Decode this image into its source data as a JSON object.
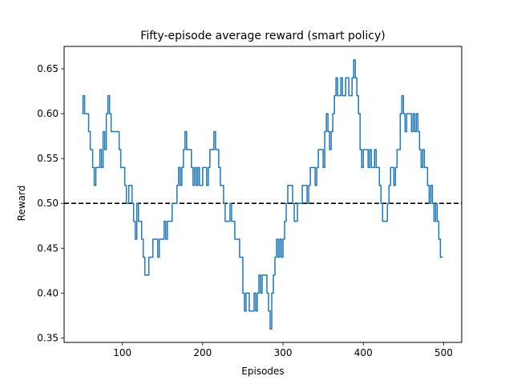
{
  "chart_data": {
    "type": "line",
    "title": "Fifty-episode average reward (smart policy)",
    "xlabel": "Episodes",
    "ylabel": "Reward",
    "xlim": [
      27.5,
      522.5
    ],
    "ylim": [
      0.345,
      0.675
    ],
    "xticks": [
      100,
      200,
      300,
      400,
      500
    ],
    "yticks": [
      0.35,
      0.4,
      0.45,
      0.5,
      0.55,
      0.6,
      0.65
    ],
    "ytick_labels": [
      "0.35",
      "0.40",
      "0.45",
      "0.50",
      "0.55",
      "0.60",
      "0.65"
    ],
    "grid": false,
    "line_color": "#1f77b4",
    "reference_line": {
      "y": 0.5,
      "style": "dashed",
      "color": "#000000"
    },
    "keypoints": [
      [
        50,
        0.6
      ],
      [
        51,
        0.62
      ],
      [
        53,
        0.6
      ],
      [
        57,
        0.6
      ],
      [
        58,
        0.58
      ],
      [
        60,
        0.56
      ],
      [
        62,
        0.56
      ],
      [
        63,
        0.54
      ],
      [
        65,
        0.52
      ],
      [
        67,
        0.54
      ],
      [
        70,
        0.54
      ],
      [
        72,
        0.56
      ],
      [
        74,
        0.54
      ],
      [
        76,
        0.58
      ],
      [
        78,
        0.56
      ],
      [
        80,
        0.6
      ],
      [
        82,
        0.62
      ],
      [
        84,
        0.6
      ],
      [
        86,
        0.58
      ],
      [
        88,
        0.58
      ],
      [
        94,
        0.58
      ],
      [
        96,
        0.56
      ],
      [
        98,
        0.54
      ],
      [
        102,
        0.54
      ],
      [
        103,
        0.52
      ],
      [
        105,
        0.5
      ],
      [
        108,
        0.52
      ],
      [
        110,
        0.52
      ],
      [
        112,
        0.5
      ],
      [
        114,
        0.48
      ],
      [
        116,
        0.46
      ],
      [
        118,
        0.5
      ],
      [
        120,
        0.48
      ],
      [
        122,
        0.48
      ],
      [
        124,
        0.46
      ],
      [
        126,
        0.44
      ],
      [
        128,
        0.42
      ],
      [
        131,
        0.42
      ],
      [
        133,
        0.44
      ],
      [
        136,
        0.44
      ],
      [
        138,
        0.46
      ],
      [
        142,
        0.46
      ],
      [
        144,
        0.44
      ],
      [
        146,
        0.46
      ],
      [
        150,
        0.46
      ],
      [
        152,
        0.48
      ],
      [
        154,
        0.46
      ],
      [
        156,
        0.48
      ],
      [
        160,
        0.48
      ],
      [
        162,
        0.5
      ],
      [
        166,
        0.5
      ],
      [
        168,
        0.52
      ],
      [
        170,
        0.54
      ],
      [
        172,
        0.52
      ],
      [
        174,
        0.54
      ],
      [
        176,
        0.56
      ],
      [
        178,
        0.58
      ],
      [
        180,
        0.56
      ],
      [
        184,
        0.56
      ],
      [
        186,
        0.54
      ],
      [
        188,
        0.52
      ],
      [
        190,
        0.54
      ],
      [
        192,
        0.52
      ],
      [
        194,
        0.54
      ],
      [
        196,
        0.52
      ],
      [
        198,
        0.52
      ],
      [
        200,
        0.54
      ],
      [
        202,
        0.54
      ],
      [
        205,
        0.52
      ],
      [
        207,
        0.54
      ],
      [
        209,
        0.56
      ],
      [
        212,
        0.56
      ],
      [
        214,
        0.58
      ],
      [
        216,
        0.56
      ],
      [
        218,
        0.56
      ],
      [
        220,
        0.54
      ],
      [
        222,
        0.52
      ],
      [
        224,
        0.52
      ],
      [
        226,
        0.5
      ],
      [
        228,
        0.48
      ],
      [
        232,
        0.48
      ],
      [
        234,
        0.5
      ],
      [
        236,
        0.48
      ],
      [
        238,
        0.48
      ],
      [
        240,
        0.46
      ],
      [
        244,
        0.46
      ],
      [
        246,
        0.44
      ],
      [
        248,
        0.44
      ],
      [
        250,
        0.4
      ],
      [
        252,
        0.38
      ],
      [
        254,
        0.4
      ],
      [
        256,
        0.4
      ],
      [
        258,
        0.38
      ],
      [
        262,
        0.38
      ],
      [
        264,
        0.4
      ],
      [
        266,
        0.38
      ],
      [
        268,
        0.4
      ],
      [
        270,
        0.42
      ],
      [
        272,
        0.4
      ],
      [
        274,
        0.42
      ],
      [
        278,
        0.42
      ],
      [
        280,
        0.4
      ],
      [
        282,
        0.38
      ],
      [
        284,
        0.36
      ],
      [
        286,
        0.4
      ],
      [
        288,
        0.42
      ],
      [
        290,
        0.44
      ],
      [
        292,
        0.46
      ],
      [
        294,
        0.44
      ],
      [
        296,
        0.46
      ],
      [
        298,
        0.44
      ],
      [
        300,
        0.46
      ],
      [
        302,
        0.48
      ],
      [
        304,
        0.5
      ],
      [
        306,
        0.52
      ],
      [
        310,
        0.52
      ],
      [
        312,
        0.5
      ],
      [
        314,
        0.48
      ],
      [
        316,
        0.48
      ],
      [
        318,
        0.5
      ],
      [
        322,
        0.5
      ],
      [
        324,
        0.52
      ],
      [
        328,
        0.52
      ],
      [
        330,
        0.5
      ],
      [
        332,
        0.52
      ],
      [
        334,
        0.54
      ],
      [
        338,
        0.54
      ],
      [
        340,
        0.52
      ],
      [
        342,
        0.54
      ],
      [
        344,
        0.56
      ],
      [
        348,
        0.56
      ],
      [
        350,
        0.54
      ],
      [
        352,
        0.58
      ],
      [
        354,
        0.6
      ],
      [
        356,
        0.58
      ],
      [
        358,
        0.56
      ],
      [
        360,
        0.58
      ],
      [
        362,
        0.6
      ],
      [
        364,
        0.62
      ],
      [
        366,
        0.64
      ],
      [
        368,
        0.62
      ],
      [
        370,
        0.62
      ],
      [
        372,
        0.64
      ],
      [
        374,
        0.62
      ],
      [
        376,
        0.62
      ],
      [
        378,
        0.64
      ],
      [
        380,
        0.64
      ],
      [
        382,
        0.62
      ],
      [
        384,
        0.62
      ],
      [
        386,
        0.64
      ],
      [
        388,
        0.66
      ],
      [
        390,
        0.64
      ],
      [
        392,
        0.62
      ],
      [
        394,
        0.6
      ],
      [
        396,
        0.56
      ],
      [
        398,
        0.54
      ],
      [
        400,
        0.56
      ],
      [
        404,
        0.56
      ],
      [
        406,
        0.54
      ],
      [
        408,
        0.56
      ],
      [
        410,
        0.54
      ],
      [
        412,
        0.54
      ],
      [
        414,
        0.56
      ],
      [
        416,
        0.54
      ],
      [
        418,
        0.54
      ],
      [
        420,
        0.52
      ],
      [
        422,
        0.5
      ],
      [
        424,
        0.48
      ],
      [
        428,
        0.48
      ],
      [
        430,
        0.5
      ],
      [
        432,
        0.52
      ],
      [
        434,
        0.54
      ],
      [
        436,
        0.54
      ],
      [
        438,
        0.52
      ],
      [
        440,
        0.54
      ],
      [
        442,
        0.56
      ],
      [
        444,
        0.56
      ],
      [
        446,
        0.6
      ],
      [
        448,
        0.62
      ],
      [
        450,
        0.6
      ],
      [
        452,
        0.58
      ],
      [
        454,
        0.6
      ],
      [
        458,
        0.6
      ],
      [
        460,
        0.58
      ],
      [
        462,
        0.6
      ],
      [
        464,
        0.58
      ],
      [
        466,
        0.6
      ],
      [
        468,
        0.58
      ],
      [
        470,
        0.56
      ],
      [
        472,
        0.54
      ],
      [
        474,
        0.56
      ],
      [
        476,
        0.54
      ],
      [
        478,
        0.54
      ],
      [
        480,
        0.52
      ],
      [
        482,
        0.5
      ],
      [
        484,
        0.52
      ],
      [
        486,
        0.5
      ],
      [
        488,
        0.48
      ],
      [
        490,
        0.5
      ],
      [
        492,
        0.48
      ],
      [
        494,
        0.46
      ],
      [
        496,
        0.44
      ],
      [
        499,
        0.44
      ]
    ]
  }
}
